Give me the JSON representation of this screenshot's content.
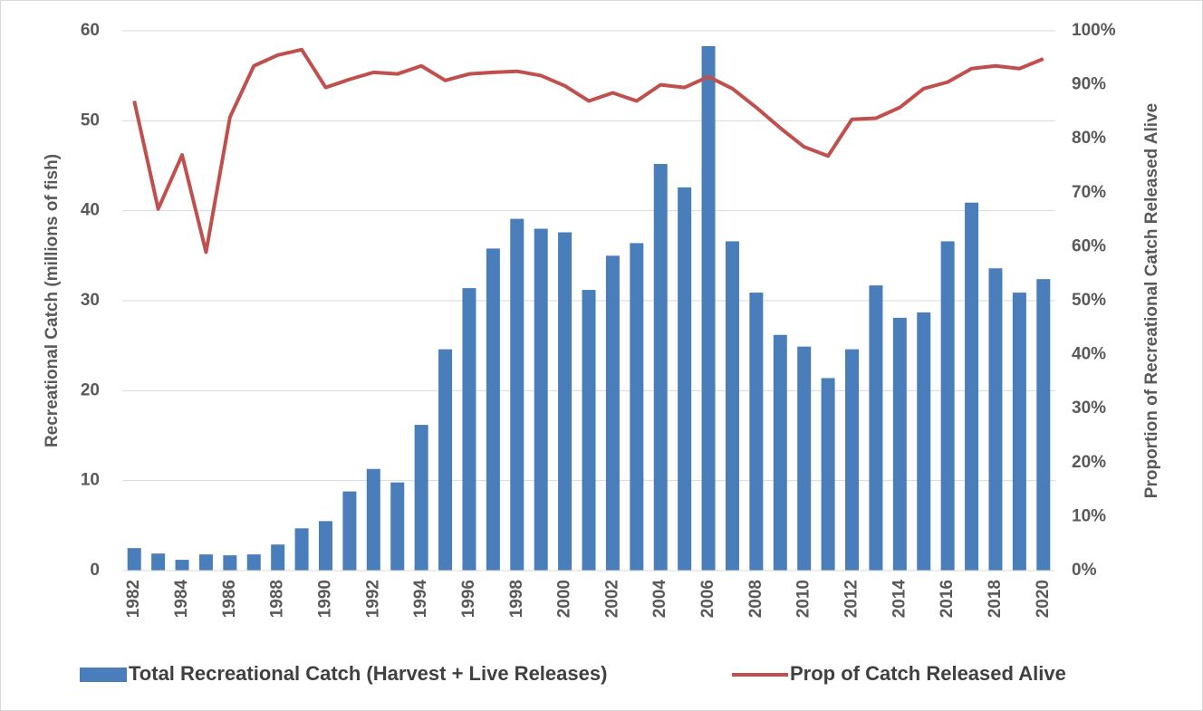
{
  "chart_data": {
    "type": "bar-line",
    "y_label": "Recreational Catch (millions of fish)",
    "y2_label": "Proportion of Recreational Catch Released Alive",
    "categories": [
      "1982",
      null,
      "1984",
      null,
      "1986",
      null,
      "1988",
      null,
      "1990",
      null,
      "1992",
      null,
      "1994",
      null,
      "1996",
      null,
      "1998",
      null,
      "2000",
      null,
      "2002",
      null,
      "2004",
      null,
      "2006",
      null,
      "2008",
      null,
      "2010",
      null,
      "2012",
      null,
      "2014",
      null,
      "2016",
      null,
      "2018",
      null,
      "2020"
    ],
    "series": [
      {
        "name": "Total Recreational Catch (Harvest + Live Releases)",
        "type": "bar",
        "color": "#4a7ebb",
        "values": [
          2.5,
          1.9,
          1.2,
          1.8,
          1.7,
          1.8,
          2.9,
          4.7,
          5.5,
          8.8,
          11.3,
          9.8,
          16.2,
          24.6,
          31.4,
          35.8,
          39.1,
          38.0,
          37.6,
          31.2,
          35.0,
          36.4,
          45.2,
          42.6,
          58.3,
          36.6,
          30.9,
          26.2,
          24.9,
          21.4,
          24.6,
          31.7,
          28.1,
          28.7,
          36.6,
          40.9,
          33.6,
          30.9,
          32.4
        ]
      },
      {
        "name": "Prop of Catch Released Alive",
        "type": "line",
        "axis": "y2",
        "color": "#c0504d",
        "values": [
          87,
          67,
          77,
          59,
          84,
          93.5,
          95.5,
          96.5,
          89.5,
          91,
          92.3,
          92,
          93.5,
          90.8,
          92,
          92.3,
          92.5,
          91.7,
          89.8,
          87,
          88.5,
          87,
          90,
          89.5,
          91.5,
          89.3,
          85.8,
          82,
          78.5,
          76.8,
          83.6,
          83.8,
          85.8,
          89.3,
          90.5,
          93,
          93.5,
          93,
          94.8
        ]
      }
    ],
    "ylim": [
      0,
      60
    ],
    "yticks": [
      0,
      10,
      20,
      30,
      40,
      50,
      60
    ],
    "y2lim": [
      0,
      100
    ],
    "y2ticks": [
      {
        "value": 0,
        "label": "0%"
      },
      {
        "value": 10,
        "label": "10%"
      },
      {
        "value": 20,
        "label": "20%"
      },
      {
        "value": 30,
        "label": "30%"
      },
      {
        "value": 40,
        "label": "40%"
      },
      {
        "value": 50,
        "label": "50%"
      },
      {
        "value": 60,
        "label": "60%"
      },
      {
        "value": 70,
        "label": "70%"
      },
      {
        "value": 80,
        "label": "80%"
      },
      {
        "value": 90,
        "label": "90%"
      },
      {
        "value": 100,
        "label": "100%"
      }
    ],
    "grid": true,
    "legend": "bottom"
  }
}
